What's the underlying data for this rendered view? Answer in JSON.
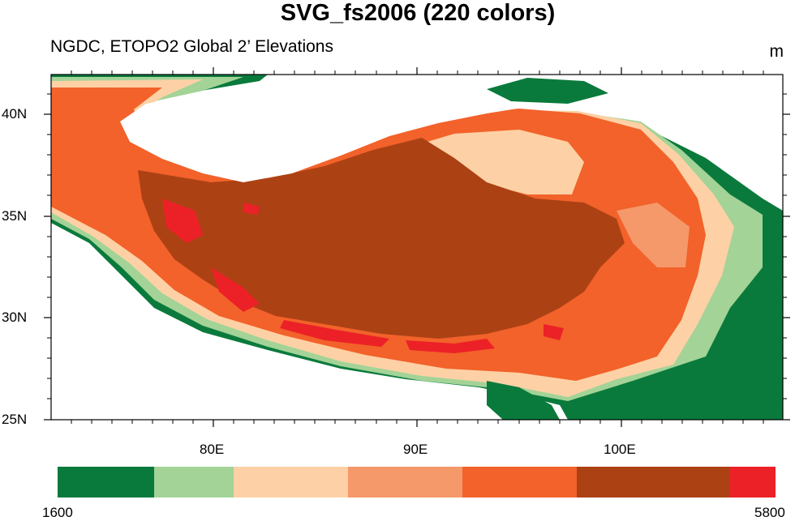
{
  "title": "SVG_fs2006 (220 colors)",
  "subtitle": "NGDC, ETOPO2 Global 2’ Elevations",
  "units": "m",
  "lat_labels": [
    "40N",
    "35N",
    "30N",
    "25N"
  ],
  "lon_labels": [
    "80E",
    "90E",
    "100E"
  ],
  "colorbar": {
    "min_label": "1600",
    "max_label": "5800",
    "colors": [
      "#0a7a3c",
      "#a3d397",
      "#fdd1a5",
      "#f5986a",
      "#f2622a",
      "#ac4114",
      "#ec2127"
    ]
  }
}
